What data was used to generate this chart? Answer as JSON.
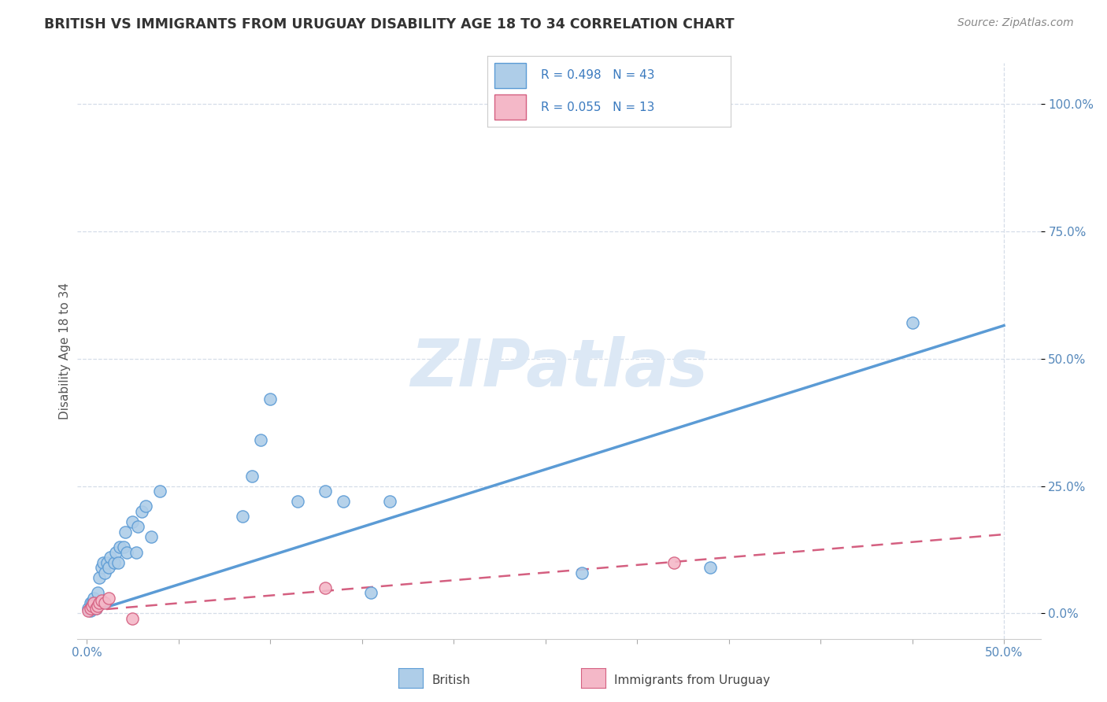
{
  "title": "BRITISH VS IMMIGRANTS FROM URUGUAY DISABILITY AGE 18 TO 34 CORRELATION CHART",
  "source": "Source: ZipAtlas.com",
  "xlim": [
    -0.005,
    0.52
  ],
  "ylim": [
    -0.05,
    1.08
  ],
  "ylabel": "Disability Age 18 to 34",
  "ytick_labels": [
    "0.0%",
    "25.0%",
    "50.0%",
    "75.0%",
    "100.0%"
  ],
  "ytick_values": [
    0.0,
    0.25,
    0.5,
    0.75,
    1.0
  ],
  "xtick_labels": [
    "0.0%",
    "",
    "",
    "",
    "",
    "",
    "",
    "",
    "",
    "",
    "50.0%"
  ],
  "xtick_values": [
    0.0,
    0.05,
    0.1,
    0.15,
    0.2,
    0.25,
    0.3,
    0.35,
    0.4,
    0.45,
    0.5
  ],
  "british_R": 0.498,
  "british_N": 43,
  "uruguay_R": 0.055,
  "uruguay_N": 13,
  "british_color": "#aecde8",
  "british_edge_color": "#5b9bd5",
  "uruguay_color": "#f4b8c8",
  "uruguay_edge_color": "#d45f80",
  "watermark": "ZIPatlas",
  "watermark_color": "#dce8f5",
  "british_x": [
    0.001,
    0.002,
    0.002,
    0.003,
    0.003,
    0.004,
    0.004,
    0.005,
    0.005,
    0.006,
    0.007,
    0.008,
    0.009,
    0.01,
    0.011,
    0.012,
    0.013,
    0.015,
    0.016,
    0.017,
    0.018,
    0.02,
    0.021,
    0.022,
    0.025,
    0.027,
    0.028,
    0.03,
    0.032,
    0.035,
    0.04,
    0.085,
    0.09,
    0.095,
    0.1,
    0.115,
    0.13,
    0.14,
    0.155,
    0.165,
    0.27,
    0.34,
    0.45
  ],
  "british_y": [
    0.01,
    0.005,
    0.02,
    0.01,
    0.02,
    0.015,
    0.03,
    0.01,
    0.02,
    0.04,
    0.07,
    0.09,
    0.1,
    0.08,
    0.1,
    0.09,
    0.11,
    0.1,
    0.12,
    0.1,
    0.13,
    0.13,
    0.16,
    0.12,
    0.18,
    0.12,
    0.17,
    0.2,
    0.21,
    0.15,
    0.24,
    0.19,
    0.27,
    0.34,
    0.42,
    0.22,
    0.24,
    0.22,
    0.04,
    0.22,
    0.08,
    0.09,
    0.57
  ],
  "uruguay_x": [
    0.001,
    0.002,
    0.003,
    0.004,
    0.005,
    0.006,
    0.007,
    0.008,
    0.01,
    0.012,
    0.025,
    0.13,
    0.32
  ],
  "uruguay_y": [
    0.005,
    0.01,
    0.015,
    0.02,
    0.01,
    0.015,
    0.02,
    0.025,
    0.02,
    0.03,
    -0.01,
    0.05,
    0.1
  ],
  "british_trendline_x": [
    0.0,
    0.5
  ],
  "british_trendline_y": [
    0.0,
    0.565
  ],
  "uruguay_trendline_x": [
    0.0,
    0.5
  ],
  "uruguay_trendline_y": [
    0.005,
    0.155
  ],
  "bottom_xtick_labels_show": [
    "0.0%",
    "50.0%"
  ],
  "grid_color": "#d5dde8",
  "spine_color": "#cccccc"
}
